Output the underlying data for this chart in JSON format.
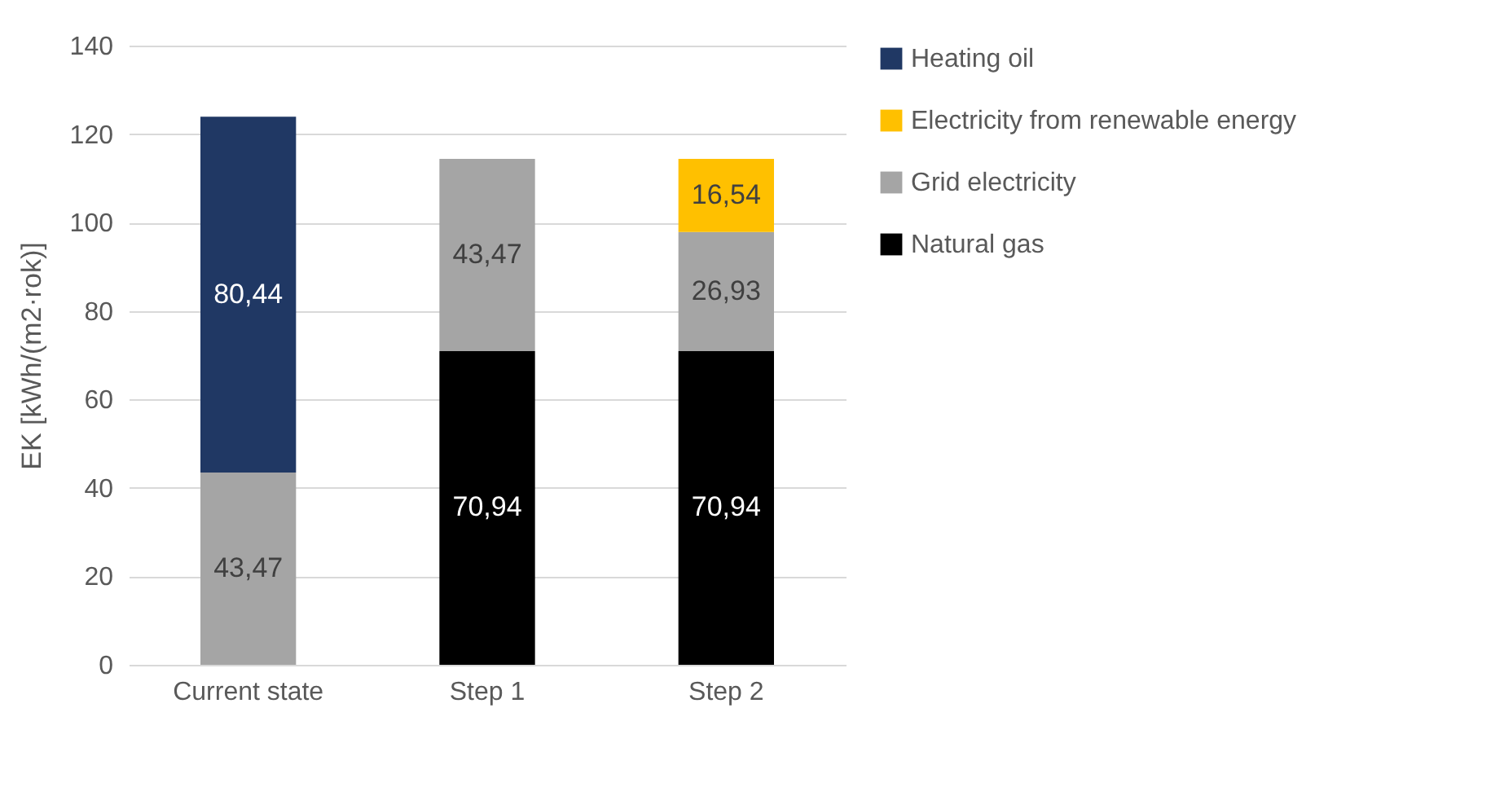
{
  "chart_data": {
    "type": "bar",
    "stacked": true,
    "ylabel": "EK [kWh/(m2·rok)]",
    "categories": [
      "Current state",
      "Step 1",
      "Step 2"
    ],
    "series": [
      {
        "name": "Natural gas",
        "color": "#000000",
        "values": [
          null,
          70.94,
          70.94
        ],
        "value_labels": [
          null,
          "70,94",
          "70,94"
        ]
      },
      {
        "name": "Grid electricity",
        "color": "#a5a5a5",
        "values": [
          43.47,
          43.47,
          26.93
        ],
        "value_labels": [
          "43,47",
          "43,47",
          "26,93"
        ]
      },
      {
        "name": "Electricity from renewable energy",
        "color": "#ffc000",
        "values": [
          null,
          null,
          16.54
        ],
        "value_labels": [
          null,
          null,
          "16,54"
        ]
      },
      {
        "name": "Heating oil",
        "color": "#203864",
        "values": [
          80.44,
          null,
          null
        ],
        "value_labels": [
          "80,44",
          null,
          null
        ]
      }
    ],
    "ylim": [
      0,
      140
    ],
    "yticks": [
      0,
      20,
      40,
      60,
      80,
      100,
      120,
      140
    ],
    "grid": "y",
    "legend": "right"
  }
}
